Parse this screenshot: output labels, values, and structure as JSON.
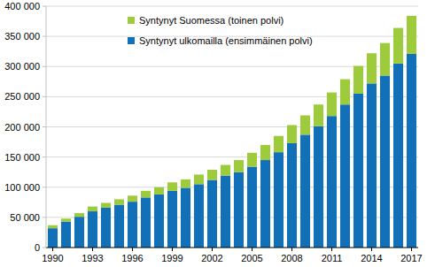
{
  "chart_data": {
    "type": "bar",
    "stacked": true,
    "grid": true,
    "legend": "upper left",
    "categories": [
      "1990",
      null,
      null,
      "1993",
      null,
      null,
      "1996",
      null,
      null,
      "1999",
      null,
      null,
      "2002",
      null,
      null,
      "2005",
      null,
      null,
      "2008",
      null,
      null,
      "2011",
      null,
      null,
      "2014",
      null,
      null,
      "2017"
    ],
    "series": [
      {
        "name": "Syntynyt ulkomailla (ensimmäinen polvi)",
        "color": "#1170b8",
        "values": [
          32000,
          43000,
          51000,
          60000,
          66000,
          71000,
          76000,
          83000,
          88000,
          94000,
          99000,
          105000,
          112000,
          119000,
          125000,
          134000,
          145000,
          158000,
          173000,
          187000,
          201000,
          218000,
          237000,
          255000,
          272000,
          285000,
          305000,
          321000
        ]
      },
      {
        "name": "Syntynyt Suomessa (toinen polvi)",
        "color": "#9dcb3c",
        "values": [
          5000,
          5000,
          6000,
          8000,
          8000,
          9000,
          10000,
          11000,
          12000,
          14000,
          14000,
          16000,
          17000,
          18000,
          20000,
          23000,
          25000,
          27000,
          30000,
          32000,
          36000,
          39000,
          42000,
          46000,
          50000,
          54000,
          59000,
          63000
        ]
      }
    ],
    "ylim": [
      0,
      400000
    ],
    "yticks": [
      0,
      {
        "value": 50000,
        "label": "50 000"
      },
      {
        "value": 100000,
        "label": "100 000"
      },
      {
        "value": 150000,
        "label": "150 000"
      },
      {
        "value": 200000,
        "label": "200 000"
      },
      {
        "value": 250000,
        "label": "250 000"
      },
      {
        "value": 300000,
        "label": "300 000"
      },
      {
        "value": 350000,
        "label": "350 000"
      },
      {
        "value": 400000,
        "label": "400 000"
      }
    ]
  }
}
